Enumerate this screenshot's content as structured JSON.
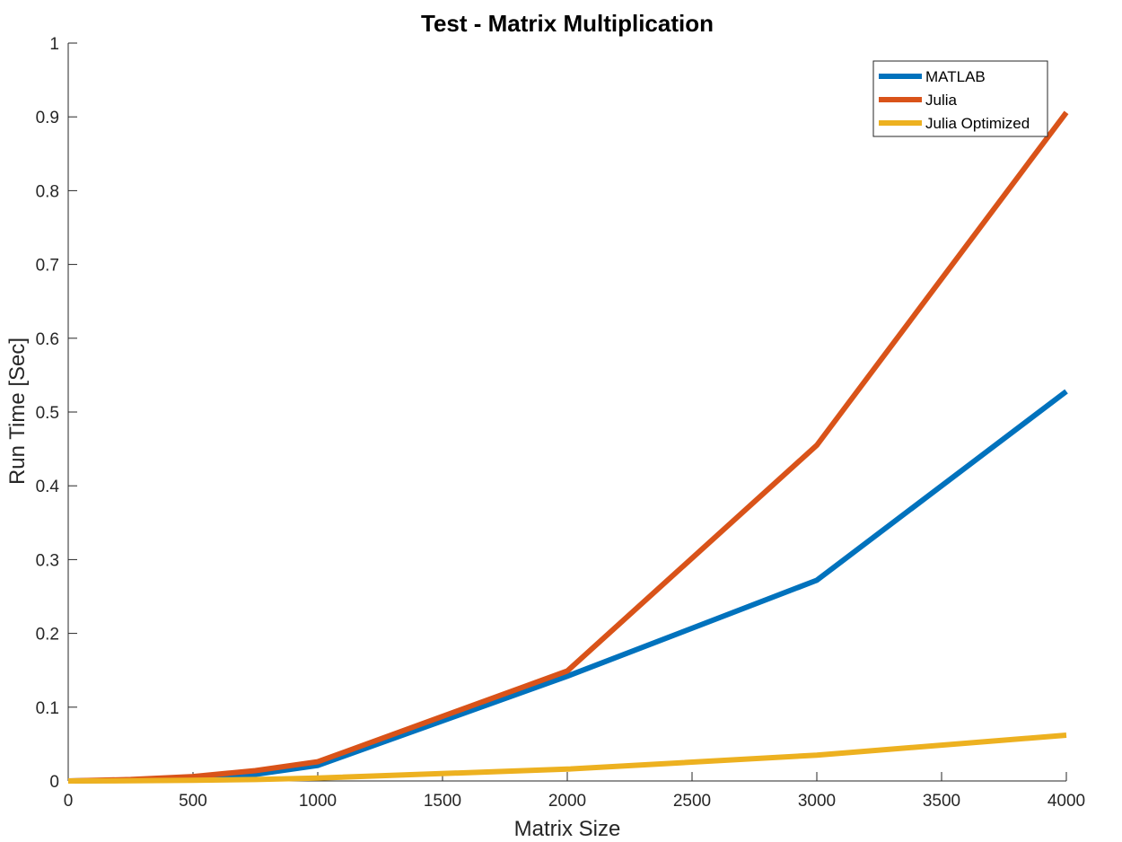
{
  "chart_data": {
    "type": "line",
    "title": "Test - Matrix Multiplication",
    "xlabel": "Matrix Size",
    "ylabel": "Run Time  [Sec]",
    "xlim": [
      0,
      4000
    ],
    "ylim": [
      0,
      1
    ],
    "x_ticks": [
      "0",
      "500",
      "1000",
      "1500",
      "2000",
      "2500",
      "3000",
      "3500",
      "4000"
    ],
    "y_ticks": [
      "0",
      "0.1",
      "0.2",
      "0.3",
      "0.4",
      "0.5",
      "0.6",
      "0.7",
      "0.8",
      "0.9",
      "1"
    ],
    "grid": false,
    "legend_position": "top-right",
    "series": [
      {
        "name": "MATLAB",
        "color": "#0072BD",
        "x": [
          0,
          250,
          500,
          750,
          1000,
          2000,
          3000,
          4000
        ],
        "y": [
          0,
          0.001,
          0.004,
          0.009,
          0.021,
          0.142,
          0.272,
          0.528
        ]
      },
      {
        "name": "Julia",
        "color": "#D95319",
        "x": [
          0,
          250,
          500,
          750,
          1000,
          2000,
          3000,
          4000
        ],
        "y": [
          0,
          0.002,
          0.006,
          0.014,
          0.026,
          0.149,
          0.455,
          0.906
        ]
      },
      {
        "name": "Julia Optimized",
        "color": "#EDB120",
        "x": [
          0,
          250,
          500,
          750,
          1000,
          2000,
          3000,
          4000
        ],
        "y": [
          0,
          0.0003,
          0.001,
          0.002,
          0.004,
          0.016,
          0.035,
          0.062
        ]
      }
    ]
  }
}
